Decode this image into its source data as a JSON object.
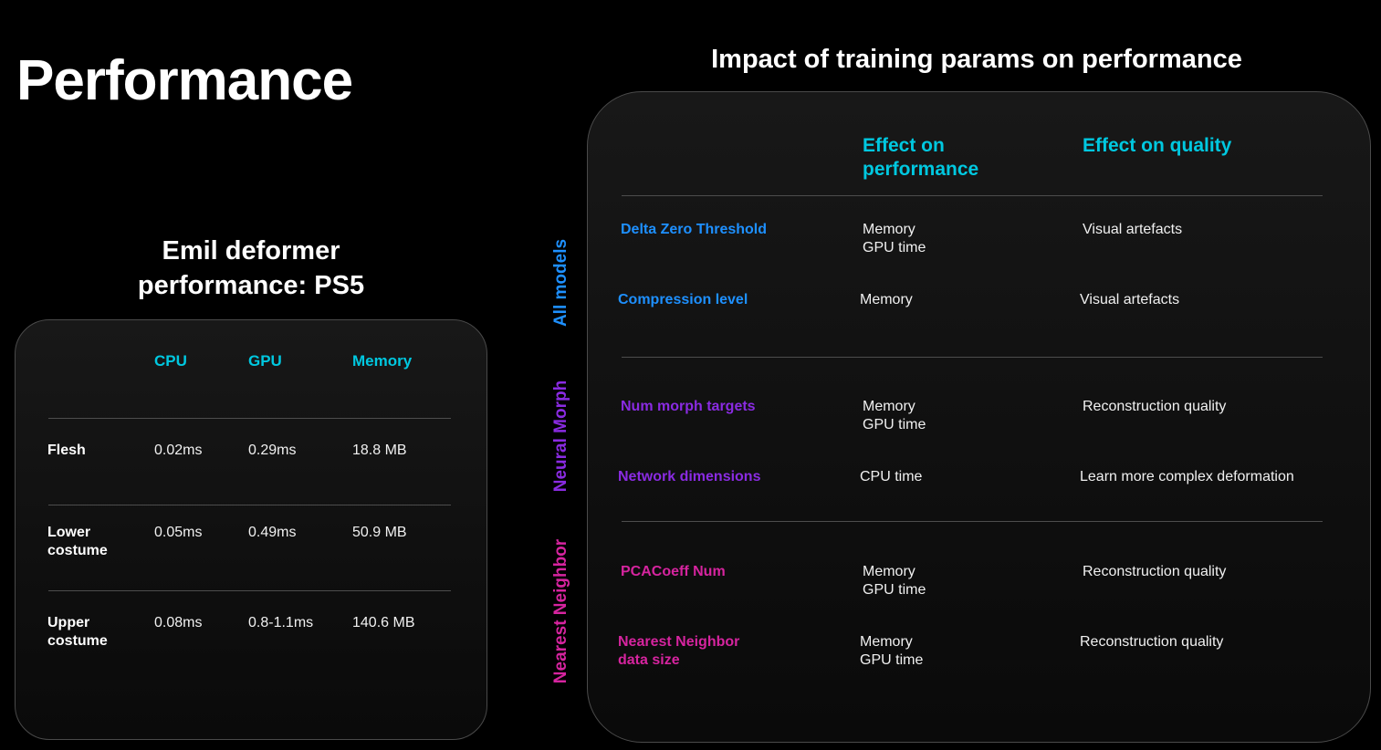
{
  "page": {
    "title": "Performance"
  },
  "left_table": {
    "heading_line1": "Emil deformer",
    "heading_line2": "performance: PS5",
    "columns": [
      "CPU",
      "GPU",
      "Memory"
    ],
    "rows": [
      {
        "label": "Flesh",
        "cpu": "0.02ms",
        "gpu": "0.29ms",
        "memory": "18.8 MB"
      },
      {
        "label": "Lower\ncostume",
        "cpu": "0.05ms",
        "gpu": "0.49ms",
        "memory": "50.9 MB"
      },
      {
        "label": "Upper\ncostume",
        "cpu": "0.08ms",
        "gpu": "0.8-1.1ms",
        "memory": "140.6 MB"
      }
    ]
  },
  "right_table": {
    "heading": "Impact of training params on performance",
    "col_performance": "Effect on\nperformance",
    "col_quality": "Effect on quality",
    "groups": [
      {
        "label": "All models",
        "color": "#1e90ff",
        "params": [
          {
            "name": "Delta Zero Threshold",
            "performance": "Memory\nGPU time",
            "quality": "Visual artefacts"
          },
          {
            "name": "Compression level",
            "performance": "Memory",
            "quality": "Visual artefacts"
          }
        ]
      },
      {
        "label": "Neural Morph",
        "color": "#8a2be2",
        "params": [
          {
            "name": "Num morph targets",
            "performance": "Memory\nGPU time",
            "quality": "Reconstruction quality"
          },
          {
            "name": "Network dimensions",
            "performance": "CPU time",
            "quality": "Learn more complex deformation"
          }
        ]
      },
      {
        "label": "Nearest Neighbor",
        "color": "#d6249f",
        "params": [
          {
            "name": "PCACoeff Num",
            "performance": "Memory\nGPU time",
            "quality": "Reconstruction quality"
          },
          {
            "name": "Nearest Neighbor\ndata size",
            "performance": "Memory\nGPU time",
            "quality": "Reconstruction quality"
          }
        ]
      }
    ]
  },
  "colors": {
    "header_cyan": "#00c8e0",
    "background": "#000000",
    "panel_border": "#4a4a4a"
  }
}
